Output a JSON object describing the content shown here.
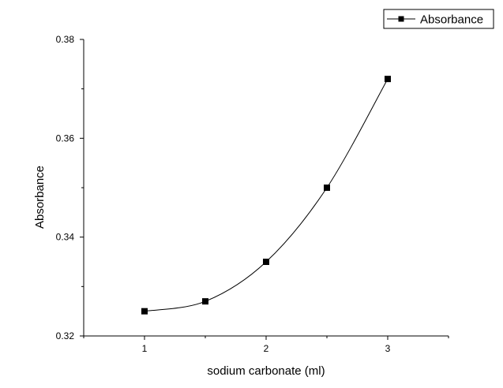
{
  "chart_data": {
    "type": "line",
    "xlabel": "sodium carbonate (ml)",
    "ylabel": "Absorbance",
    "xlim": [
      0.5,
      3.5
    ],
    "ylim": [
      0.32,
      0.38
    ],
    "x_ticks": [
      "1",
      "2",
      "3"
    ],
    "y_ticks": [
      "0.32",
      "0.34",
      "0.36",
      "0.38"
    ],
    "x_tick_values": [
      1,
      2,
      3
    ],
    "y_tick_values": [
      0.32,
      0.34,
      0.36,
      0.38
    ],
    "grid": false,
    "legend_position": "top-right",
    "series": [
      {
        "name": "Absorbance",
        "marker": "square",
        "line": "smooth",
        "color": "#000000",
        "x": [
          1,
          1.5,
          2,
          2.5,
          3
        ],
        "y": [
          0.325,
          0.327,
          0.335,
          0.35,
          0.372
        ]
      }
    ]
  }
}
